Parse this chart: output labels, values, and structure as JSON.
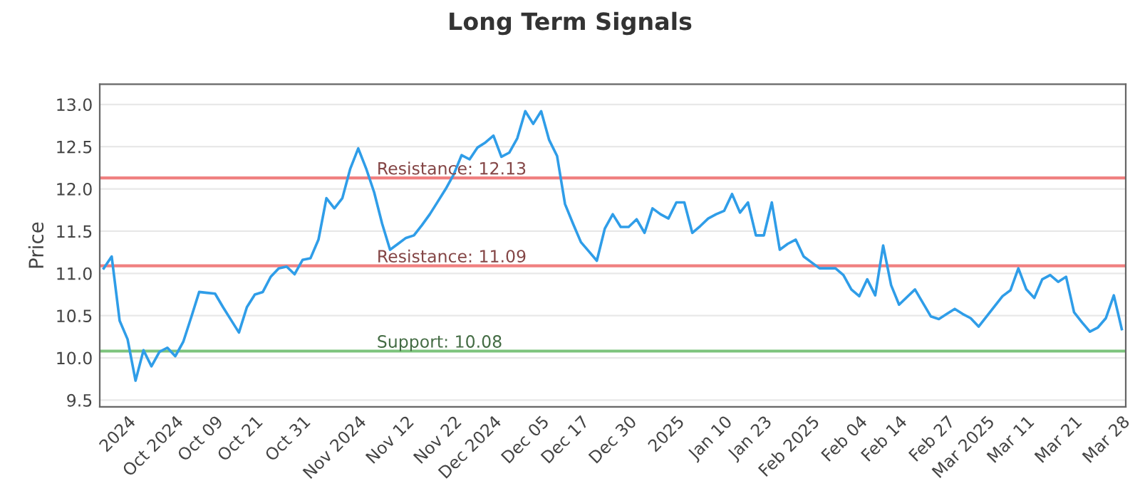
{
  "chart_data": {
    "type": "line",
    "title": "Long Term Signals",
    "ylabel": "Price",
    "categories": [
      null,
      null,
      null,
      "2024",
      null,
      null,
      null,
      null,
      null,
      "Oct 2024",
      null,
      null,
      null,
      null,
      "Oct 09",
      null,
      null,
      null,
      null,
      "Oct 21",
      null,
      null,
      null,
      null,
      null,
      "Oct 31",
      null,
      null,
      null,
      null,
      null,
      null,
      "Nov 2024",
      null,
      null,
      null,
      null,
      null,
      "Nov 12",
      null,
      null,
      null,
      null,
      null,
      "Nov 22",
      null,
      null,
      null,
      null,
      "Dec 2024",
      null,
      null,
      null,
      null,
      null,
      "Dec 05",
      null,
      null,
      null,
      null,
      "Dec 17",
      null,
      null,
      null,
      null,
      null,
      "Dec 30",
      null,
      null,
      null,
      null,
      null,
      "2025",
      null,
      null,
      null,
      null,
      null,
      "Jan 10",
      null,
      null,
      null,
      null,
      "Jan 23",
      null,
      null,
      null,
      null,
      null,
      "Feb 2025",
      null,
      null,
      null,
      null,
      null,
      "Feb 04",
      null,
      null,
      null,
      null,
      "Feb 14",
      null,
      null,
      null,
      null,
      null,
      "Feb 27",
      null,
      null,
      null,
      null,
      "Mar 2025",
      null,
      null,
      null,
      null,
      "Mar 11",
      null,
      null,
      null,
      null,
      null,
      "Mar 21",
      null,
      null,
      null,
      null,
      null,
      "Mar 28"
    ],
    "series": [
      {
        "color": "#2f9de8",
        "values": [
          11.06,
          11.2,
          10.44,
          10.22,
          9.73,
          10.09,
          9.9,
          10.07,
          10.12,
          10.02,
          10.19,
          10.48,
          10.78,
          10.77,
          10.76,
          10.6,
          10.45,
          10.3,
          10.6,
          10.75,
          10.78,
          10.96,
          11.06,
          11.08,
          10.99,
          11.16,
          11.18,
          11.4,
          11.89,
          11.77,
          11.89,
          12.24,
          12.48,
          12.24,
          11.96,
          11.59,
          11.28,
          11.35,
          11.42,
          11.45,
          11.57,
          11.7,
          11.85,
          12.0,
          12.17,
          12.4,
          12.35,
          12.49,
          12.55,
          12.63,
          12.38,
          12.43,
          12.6,
          12.92,
          12.77,
          12.92,
          12.58,
          12.39,
          11.82,
          11.59,
          11.37,
          11.26,
          11.15,
          11.53,
          11.7,
          11.55,
          11.55,
          11.64,
          11.48,
          11.77,
          11.7,
          11.65,
          11.84,
          11.84,
          11.48,
          11.56,
          11.65,
          11.7,
          11.74,
          11.94,
          11.72,
          11.84,
          11.45,
          11.45,
          11.84,
          11.28,
          11.35,
          11.4,
          11.2,
          11.13,
          11.06,
          11.06,
          11.06,
          10.98,
          10.81,
          10.73,
          10.93,
          10.74,
          11.33,
          10.86,
          10.63,
          10.72,
          10.81,
          10.65,
          10.49,
          10.46,
          10.52,
          10.58,
          10.52,
          10.47,
          10.37,
          10.49,
          10.61,
          10.73,
          10.8,
          11.06,
          10.81,
          10.71,
          10.93,
          10.98,
          10.9,
          10.96,
          10.54,
          10.42,
          10.31,
          10.36,
          10.47,
          10.74,
          10.34
        ]
      }
    ],
    "ylim": [
      9.42,
      13.24
    ],
    "yticks": [
      9.5,
      {
        "value": 10,
        "label": "10.0"
      },
      10.5,
      {
        "value": 11,
        "label": "11.0"
      },
      11.5,
      {
        "value": 12,
        "label": "12.0"
      },
      12.5,
      {
        "value": 13,
        "label": "13.0"
      }
    ],
    "grid": "y",
    "marker": "none",
    "line_style": "solid",
    "ref_lines": [
      {
        "axis": "y",
        "value": 12.13,
        "label": "Resistance: 12.13",
        "color": "#f08080"
      },
      {
        "axis": "y",
        "value": 11.09,
        "label": "Resistance: 11.09",
        "color": "#f08080"
      },
      {
        "axis": "y",
        "value": 10.08,
        "label": "Support: 10.08",
        "color": "#7cc47c"
      }
    ]
  }
}
